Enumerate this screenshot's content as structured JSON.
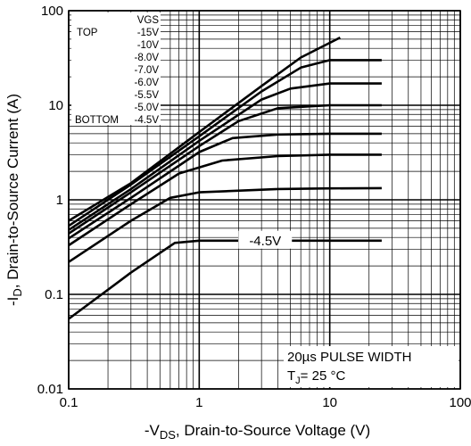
{
  "chart_data": {
    "type": "line",
    "xscale": "log",
    "yscale": "log",
    "xlim": [
      0.1,
      100
    ],
    "ylim": [
      0.01,
      100
    ],
    "x_ticks": [
      {
        "value": 0.1,
        "label": "0.1"
      },
      {
        "value": 1,
        "label": "1"
      },
      {
        "value": 10,
        "label": "10"
      },
      {
        "value": 100,
        "label": "100"
      }
    ],
    "y_ticks": [
      {
        "value": 0.01,
        "label": "0.01"
      },
      {
        "value": 0.1,
        "label": "0.1"
      },
      {
        "value": 1,
        "label": "1"
      },
      {
        "value": 10,
        "label": "10"
      },
      {
        "value": 100,
        "label": "100"
      }
    ],
    "grid": true,
    "xlabel": {
      "prefix": "-V",
      "sub": "DS",
      "rest": ", Drain-to-Source Voltage (V)"
    },
    "ylabel": {
      "prefix": "-I",
      "sub": "D",
      "rest": ",  Drain-to-Source Current (A)"
    },
    "legend": {
      "placement": "top-left",
      "header": "VGS",
      "top_label": "TOP",
      "bottom_label": "BOTTOM",
      "entries": [
        "-15V",
        "-10V",
        "-8.0V",
        "-7.0V",
        "-6.0V",
        "-5.5V",
        "-5.0V",
        "-4.5V"
      ]
    },
    "annotation": {
      "pulse": "20µs PULSE WIDTH",
      "tj_prefix": "T",
      "tj_sub": "J",
      "tj_rest": "= 25 °C"
    },
    "curve_label": "-4.5V",
    "series": [
      {
        "vgs": "-15V",
        "x": [
          0.1,
          0.3,
          1,
          3,
          6,
          12
        ],
        "y": [
          0.6,
          1.5,
          5.2,
          16,
          32,
          52
        ]
      },
      {
        "vgs": "-10V",
        "x": [
          0.1,
          0.3,
          1,
          3,
          6,
          10,
          25
        ],
        "y": [
          0.53,
          1.45,
          4.7,
          14,
          25,
          30,
          30
        ]
      },
      {
        "vgs": "-8.0V",
        "x": [
          0.1,
          0.3,
          1,
          3,
          5,
          10,
          25
        ],
        "y": [
          0.48,
          1.3,
          4.2,
          11.5,
          15,
          17,
          17
        ]
      },
      {
        "vgs": "-7.0V",
        "x": [
          0.1,
          0.3,
          1,
          2,
          4,
          10,
          25
        ],
        "y": [
          0.44,
          1.2,
          3.7,
          6.8,
          9.3,
          10,
          10
        ]
      },
      {
        "vgs": "-6.0V",
        "x": [
          0.1,
          0.3,
          1,
          1.8,
          4,
          10,
          25
        ],
        "y": [
          0.39,
          1.05,
          3.2,
          4.5,
          4.9,
          5,
          5
        ]
      },
      {
        "vgs": "-5.5V",
        "x": [
          0.1,
          0.3,
          0.7,
          1.5,
          4,
          10,
          25
        ],
        "y": [
          0.33,
          0.9,
          1.9,
          2.6,
          2.9,
          3,
          3
        ]
      },
      {
        "vgs": "-5.0V",
        "x": [
          0.1,
          0.3,
          0.6,
          1,
          4,
          10,
          25
        ],
        "y": [
          0.22,
          0.6,
          1.05,
          1.2,
          1.3,
          1.32,
          1.33
        ]
      },
      {
        "vgs": "-4.5V",
        "x": [
          0.1,
          0.3,
          0.65,
          1,
          4,
          10,
          25
        ],
        "y": [
          0.055,
          0.17,
          0.35,
          0.37,
          0.37,
          0.37,
          0.37
        ]
      }
    ]
  }
}
